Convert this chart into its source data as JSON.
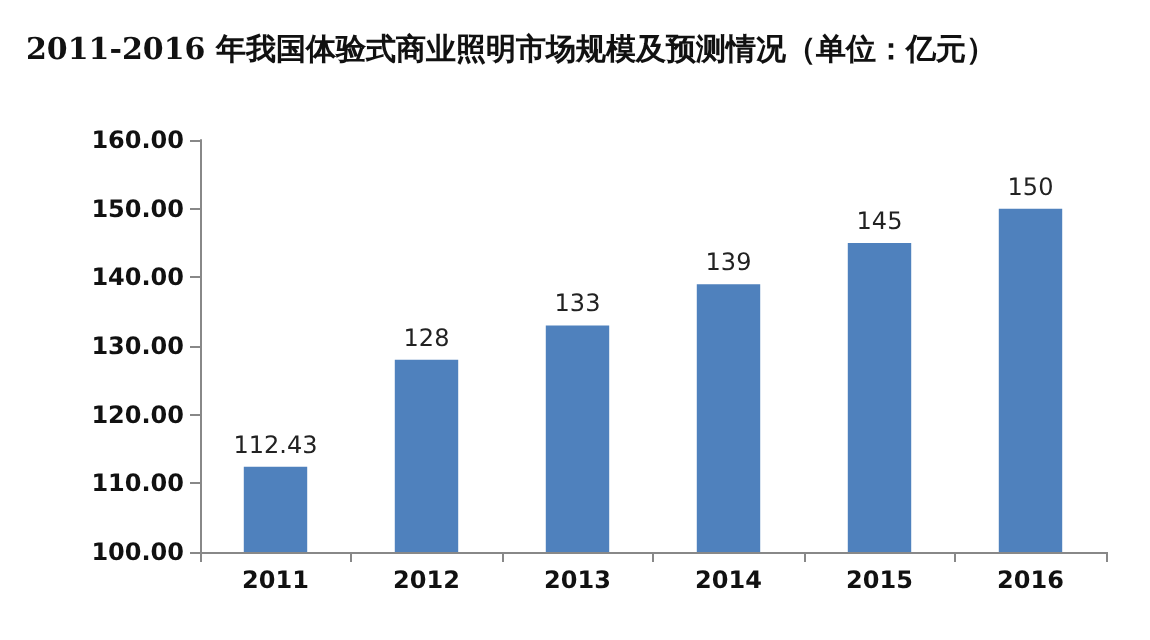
{
  "chart_data": {
    "type": "bar",
    "title": "2011-2016 年我国体验式商业照明市场规模及预测情况（单位：亿元）",
    "categories": [
      "2011",
      "2012",
      "2013",
      "2014",
      "2015",
      "2016"
    ],
    "values": [
      112.43,
      128,
      133,
      139,
      145,
      150
    ],
    "color": "#4f81bd",
    "ylim": [
      100,
      160
    ],
    "yticks": [
      {
        "value": 100,
        "label": "100.00"
      },
      {
        "value": 110,
        "label": "110.00"
      },
      {
        "value": 120,
        "label": "120.00"
      },
      {
        "value": 130,
        "label": "130.00"
      },
      {
        "value": 140,
        "label": "140.00"
      },
      {
        "value": 150,
        "label": "150.00"
      },
      {
        "value": 160,
        "label": "160.00"
      }
    ],
    "grid": false,
    "data_labels": true
  }
}
